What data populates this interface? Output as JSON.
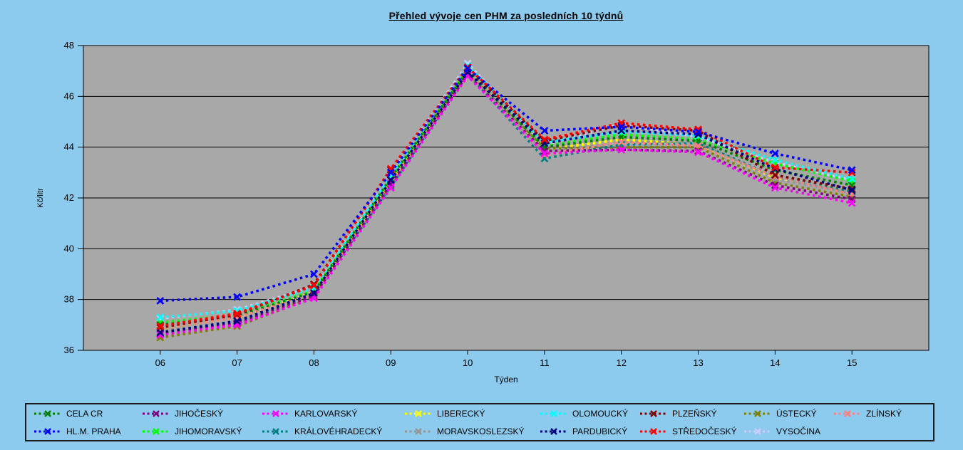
{
  "page": {
    "background_color": "#8CCBEE",
    "plot_background_color": "#A8A8A8",
    "axis_color": "#000000"
  },
  "chart_data": {
    "type": "line",
    "title": "Přehled vývoje cen PHM za posledních 10 týdnů",
    "xlabel": "Týden",
    "ylabel": "Kč/litr",
    "x": [
      "06",
      "07",
      "08",
      "09",
      "10",
      "11",
      "12",
      "13",
      "14",
      "15"
    ],
    "ylim": [
      36,
      48
    ],
    "ytick_step": 2,
    "yticks": [
      36,
      38,
      40,
      42,
      44,
      46,
      48
    ],
    "grid": true,
    "line_style": "dashed-with-x-markers",
    "legend_position": "bottom",
    "legend_rows": 2,
    "series": [
      {
        "name": "CELA CR",
        "color": "#008000",
        "values": [
          37.0,
          37.35,
          38.3,
          42.8,
          47.0,
          44.0,
          44.4,
          44.25,
          43.1,
          42.5
        ]
      },
      {
        "name": "HL.M. PRAHA",
        "color": "#0000FF",
        "values": [
          37.95,
          38.1,
          39.0,
          43.0,
          47.1,
          44.65,
          44.8,
          44.6,
          43.75,
          43.1
        ]
      },
      {
        "name": "JIHOČESKÝ",
        "color": "#800080",
        "values": [
          36.65,
          37.05,
          38.15,
          42.55,
          46.85,
          43.85,
          43.9,
          43.85,
          42.5,
          41.95
        ]
      },
      {
        "name": "JIHOMORAVSKÝ",
        "color": "#00FF00",
        "values": [
          37.1,
          37.4,
          38.35,
          42.75,
          47.05,
          44.05,
          44.5,
          44.3,
          43.35,
          42.65
        ]
      },
      {
        "name": "KARLOVARSKÝ",
        "color": "#FF00FF",
        "values": [
          36.6,
          37.0,
          38.05,
          42.4,
          46.8,
          43.75,
          43.9,
          43.8,
          42.4,
          41.8
        ]
      },
      {
        "name": "KRÁLOVÉHRADECKÝ",
        "color": "#008080",
        "values": [
          36.7,
          37.1,
          38.2,
          42.45,
          46.9,
          43.55,
          44.1,
          44.15,
          42.85,
          42.25
        ]
      },
      {
        "name": "LIBERECKÝ",
        "color": "#FFFF00",
        "values": [
          36.8,
          37.25,
          38.3,
          42.6,
          47.0,
          43.9,
          44.3,
          44.1,
          42.8,
          42.3
        ]
      },
      {
        "name": "MORAVSKOSLEZSKÝ",
        "color": "#969696",
        "values": [
          36.75,
          37.2,
          38.15,
          42.55,
          46.95,
          43.8,
          44.2,
          44.2,
          42.75,
          42.2
        ]
      },
      {
        "name": "OLOMOUCKÝ",
        "color": "#00FFFF",
        "values": [
          37.3,
          37.55,
          38.45,
          42.85,
          47.2,
          44.2,
          44.6,
          44.45,
          43.5,
          42.75
        ]
      },
      {
        "name": "PARDUBICKÝ",
        "color": "#000080",
        "values": [
          36.7,
          37.15,
          38.25,
          42.7,
          46.95,
          44.15,
          44.65,
          44.5,
          43.15,
          42.3
        ]
      },
      {
        "name": "PLZEŇSKÝ",
        "color": "#800000",
        "values": [
          36.9,
          37.4,
          38.6,
          43.1,
          47.1,
          44.25,
          44.85,
          44.65,
          42.9,
          42.35
        ]
      },
      {
        "name": "STŘEDOČESKÝ",
        "color": "#FF0000",
        "values": [
          36.95,
          37.45,
          38.55,
          43.15,
          47.15,
          44.3,
          44.95,
          44.7,
          43.2,
          43.0
        ]
      },
      {
        "name": "ÚSTECKÝ",
        "color": "#808000",
        "values": [
          36.5,
          36.95,
          38.1,
          42.5,
          46.9,
          43.95,
          44.0,
          44.0,
          42.6,
          42.05
        ]
      },
      {
        "name": "VYSOČINA",
        "color": "#CCCCFF",
        "values": [
          37.25,
          37.6,
          38.5,
          42.95,
          47.3,
          44.1,
          44.9,
          44.4,
          43.4,
          42.7
        ]
      },
      {
        "name": "ZLÍNSKÝ",
        "color": "#FF8080",
        "values": [
          36.85,
          37.3,
          38.2,
          42.65,
          46.9,
          43.7,
          44.2,
          44.05,
          42.85,
          42.15
        ]
      }
    ]
  }
}
